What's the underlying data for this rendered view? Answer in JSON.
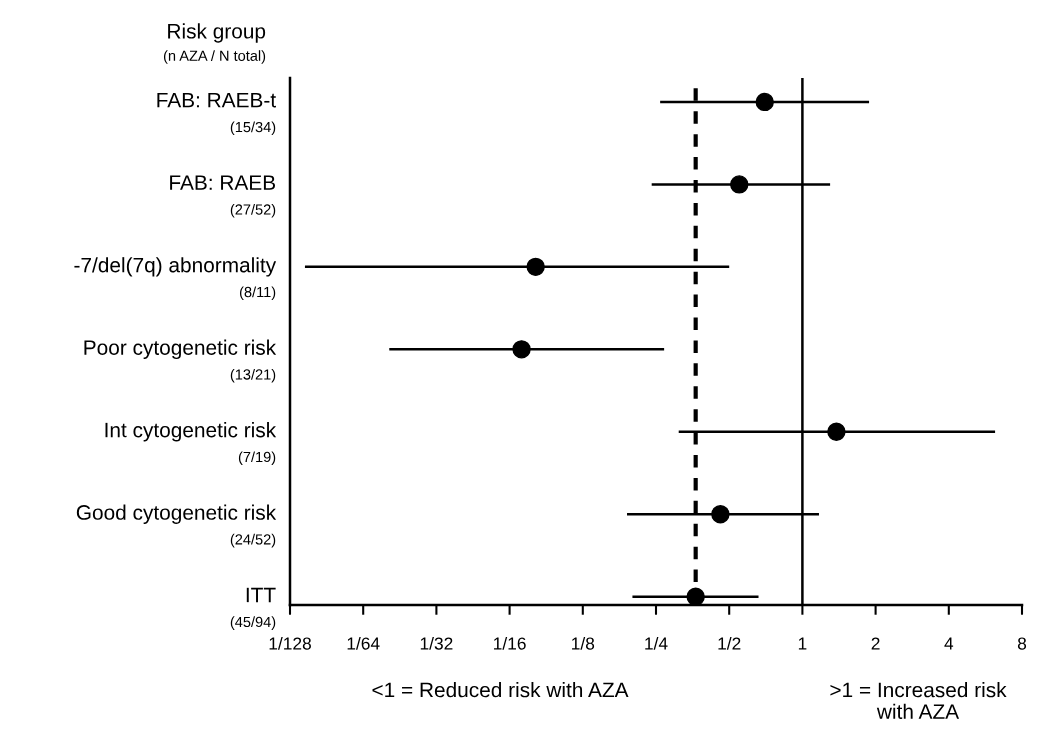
{
  "chart_data": {
    "type": "scatter",
    "orientation": "horizontal",
    "title": "Risk group",
    "subtitle": "(n AZA / N total)",
    "categories": [
      "FAB: RAEB-t\n(15/34)",
      "FAB: RAEB\n(27/52)",
      "-7/del(7q) abnormality\n(8/11)",
      "Poor cytogenetic risk\n(13/21)",
      "Int cytogenetic risk\n(7/19)",
      "Good cytogenetic risk\n(24/52)",
      "ITT\n(45/94)"
    ],
    "values": [
      0.7,
      0.55,
      0.08,
      0.07,
      1.38,
      0.46,
      0.364
    ],
    "errors": [
      [
        0.26,
        1.88
      ],
      [
        0.24,
        1.3
      ],
      [
        0.009,
        0.5
      ],
      [
        0.02,
        0.27
      ],
      [
        0.31,
        6.2
      ],
      [
        0.19,
        1.17
      ],
      [
        0.2,
        0.66
      ]
    ],
    "color": "#000000",
    "marker": "circle",
    "log": "x",
    "grid": false,
    "xlim": [
      0.0078125,
      8
    ],
    "xticks": [
      {
        "value": 0.0078125,
        "label": "1/128"
      },
      {
        "value": 0.015625,
        "label": "1/64"
      },
      {
        "value": 0.03125,
        "label": "1/32"
      },
      {
        "value": 0.0625,
        "label": "1/16"
      },
      {
        "value": 0.125,
        "label": "1/8"
      },
      {
        "value": 0.25,
        "label": "1/4"
      },
      {
        "value": 0.5,
        "label": "1/2"
      },
      1,
      2,
      4,
      8
    ],
    "ref_lines": [
      {
        "axis": "x",
        "value": 0.364,
        "line_style": "dashed",
        "color": "#000000"
      },
      {
        "axis": "x",
        "value": 1,
        "line_style": "solid",
        "color": "#000000"
      }
    ],
    "annotations": [
      "<1 = Reduced risk with AZA",
      ">1 = Increased risk\nwith AZA"
    ]
  }
}
